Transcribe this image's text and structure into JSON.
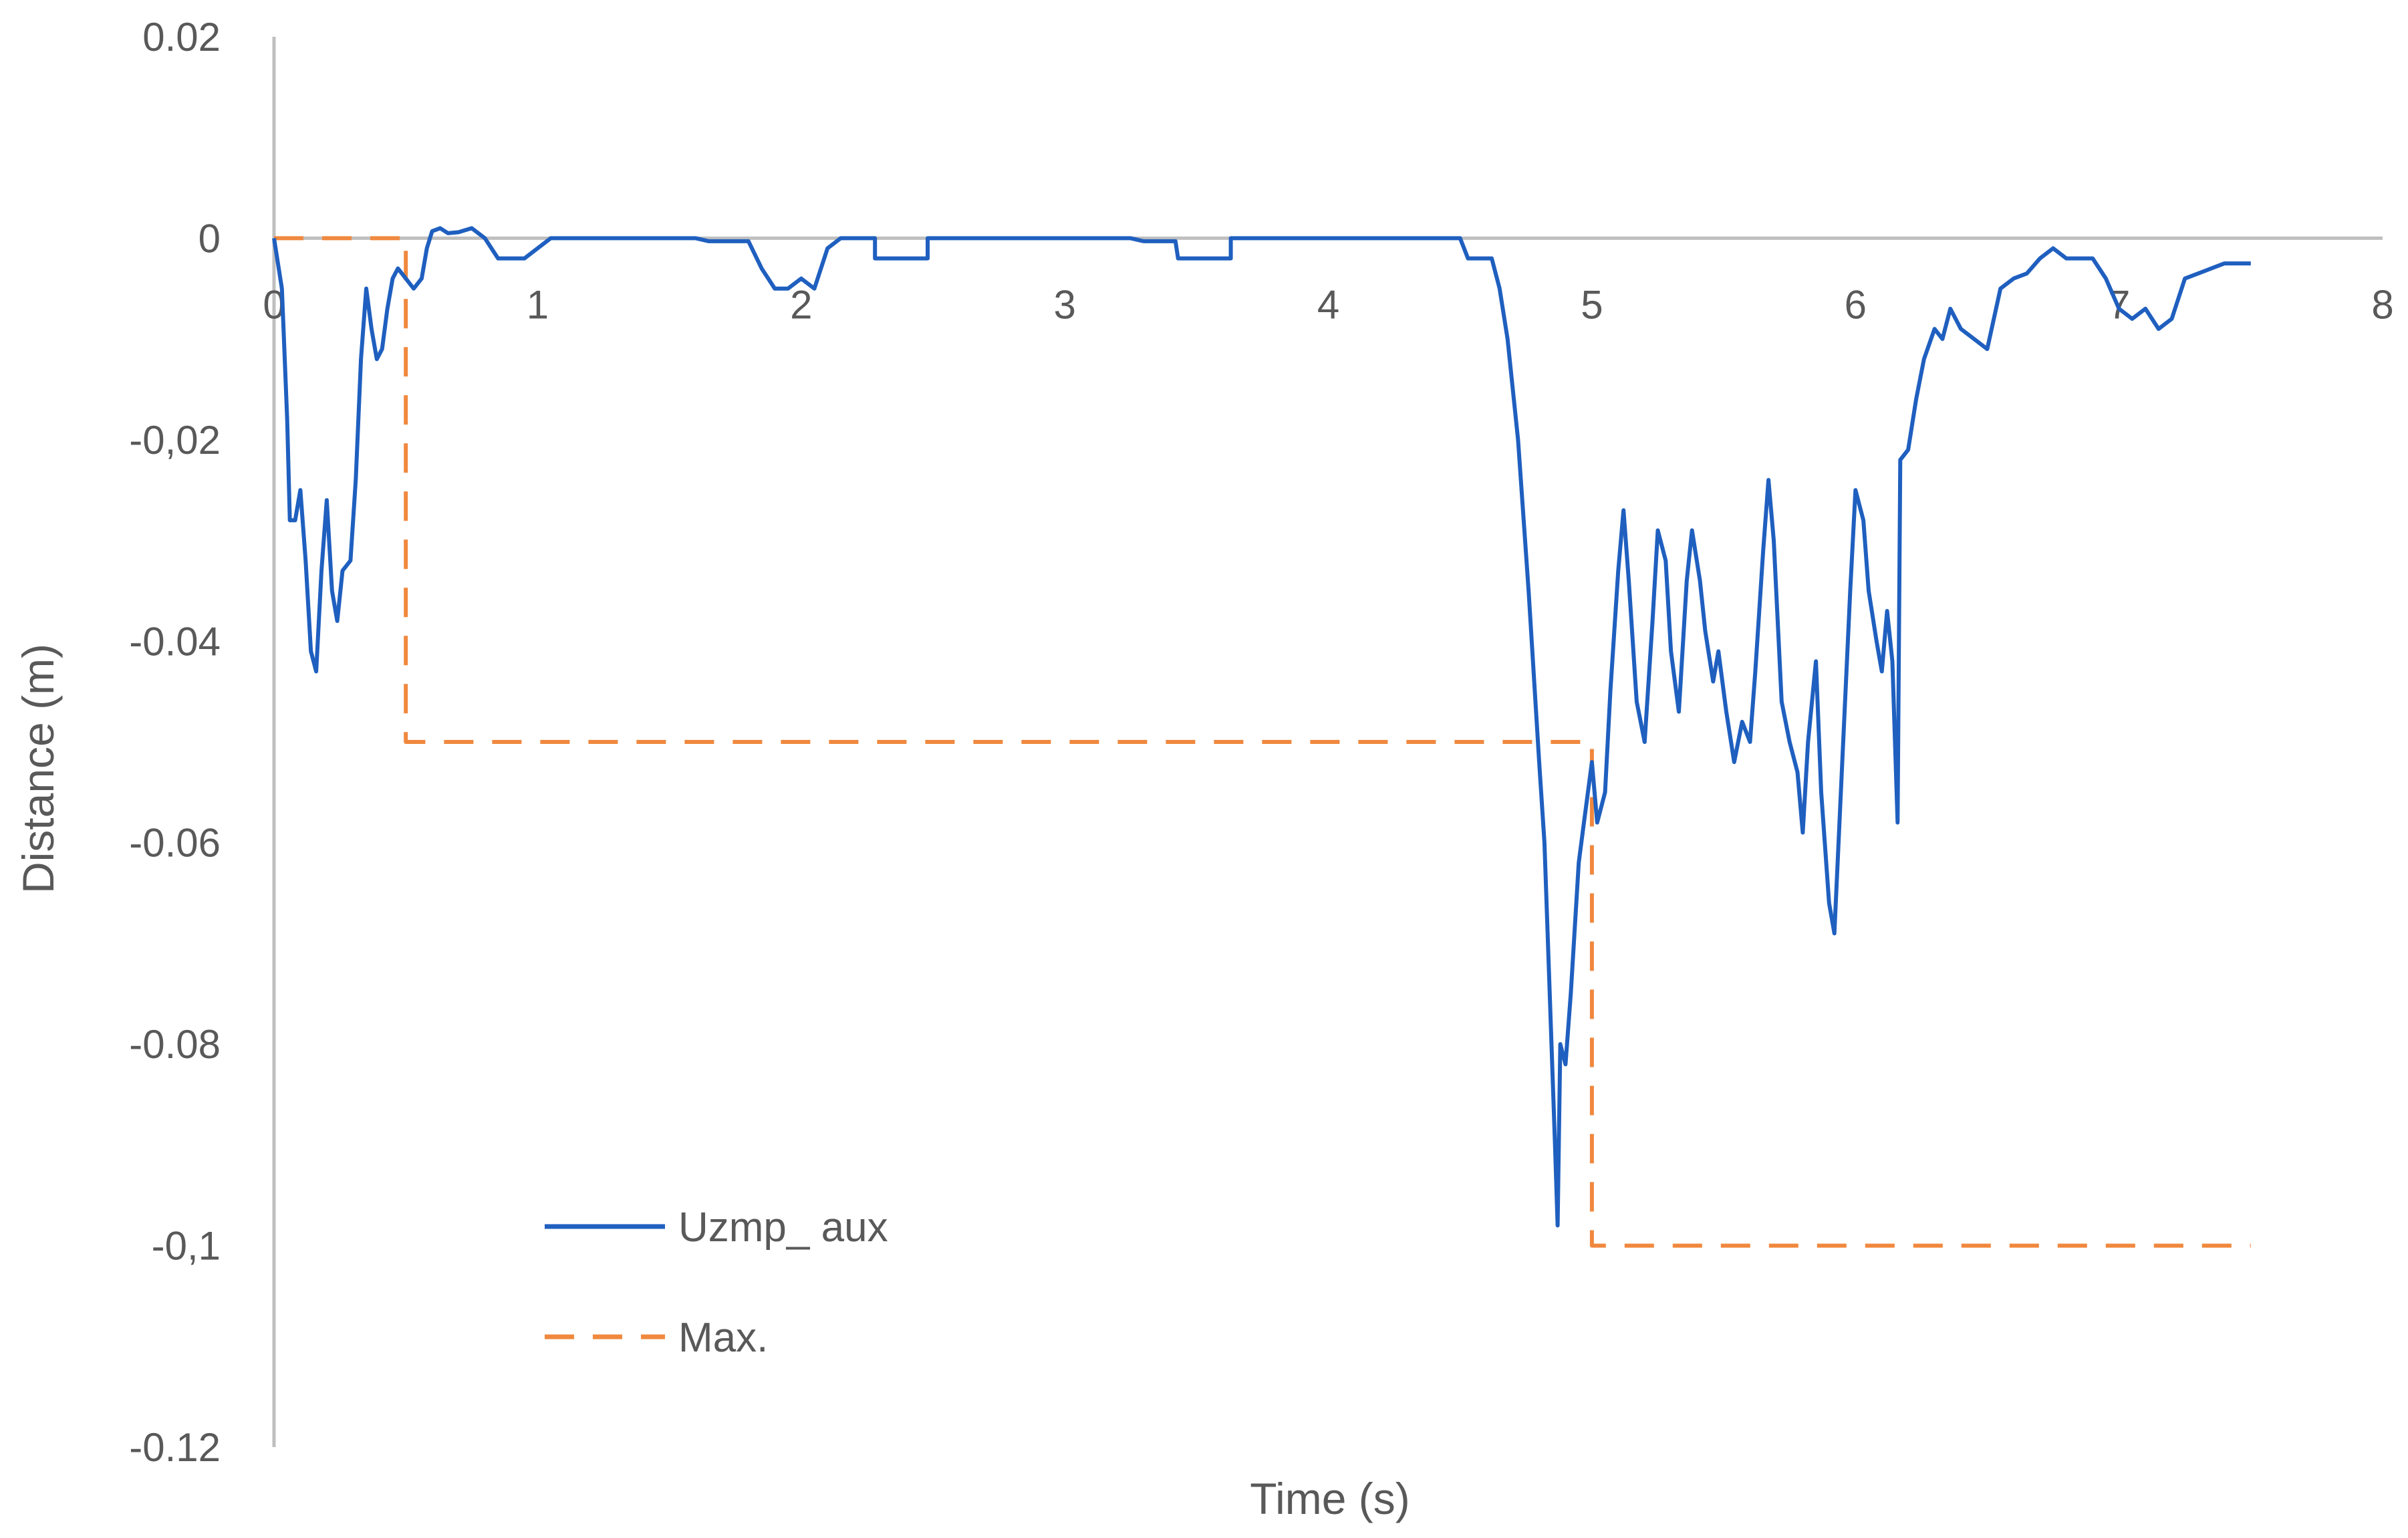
{
  "chart_data": {
    "type": "line",
    "title": "",
    "xlabel": "Time (s)",
    "ylabel": "Distance (m)",
    "xlim": [
      0,
      8
    ],
    "ylim": [
      -0.12,
      0.02
    ],
    "x_ticks": [
      0,
      1,
      2,
      3,
      4,
      5,
      6,
      7,
      8
    ],
    "x_tick_labels": [
      "0",
      "1",
      "2",
      "3",
      "4",
      "5",
      "6",
      "7",
      "8"
    ],
    "y_ticks": [
      0.02,
      0,
      -0.02,
      -0.04,
      -0.06,
      -0.08,
      -0.1,
      -0.12
    ],
    "y_tick_labels": [
      "0.02",
      "0",
      "-0,02",
      "-0.04",
      "-0.06",
      "-0.08",
      "-0,1",
      "-0.12"
    ],
    "grid": false,
    "legend_position": "bottom-left",
    "series": [
      {
        "name": "Uzmp_ aux",
        "color": "#1f5fbf",
        "style": "solid",
        "points": [
          [
            0,
            0
          ],
          [
            0.03,
            -0.005
          ],
          [
            0.05,
            -0.018
          ],
          [
            0.06,
            -0.028
          ],
          [
            0.08,
            -0.028
          ],
          [
            0.1,
            -0.025
          ],
          [
            0.12,
            -0.032
          ],
          [
            0.14,
            -0.041
          ],
          [
            0.16,
            -0.043
          ],
          [
            0.18,
            -0.033
          ],
          [
            0.2,
            -0.026
          ],
          [
            0.22,
            -0.035
          ],
          [
            0.24,
            -0.038
          ],
          [
            0.26,
            -0.033
          ],
          [
            0.29,
            -0.032
          ],
          [
            0.31,
            -0.024
          ],
          [
            0.33,
            -0.012
          ],
          [
            0.35,
            -0.005
          ],
          [
            0.37,
            -0.009
          ],
          [
            0.39,
            -0.012
          ],
          [
            0.41,
            -0.011
          ],
          [
            0.43,
            -0.007
          ],
          [
            0.45,
            -0.004
          ],
          [
            0.47,
            -0.003
          ],
          [
            0.5,
            -0.004
          ],
          [
            0.53,
            -0.005
          ],
          [
            0.56,
            -0.004
          ],
          [
            0.58,
            -0.001
          ],
          [
            0.6,
            0.0007
          ],
          [
            0.63,
            0.001
          ],
          [
            0.66,
            0.0005
          ],
          [
            0.7,
            0.0006
          ],
          [
            0.75,
            0.001
          ],
          [
            0.8,
            0
          ],
          [
            0.85,
            -0.002
          ],
          [
            0.95,
            -0.002
          ],
          [
            1.05,
            0
          ],
          [
            1.6,
            0
          ],
          [
            1.65,
            -0.0003
          ],
          [
            1.8,
            -0.0003
          ],
          [
            1.85,
            -0.003
          ],
          [
            1.9,
            -0.005
          ],
          [
            1.95,
            -0.005
          ],
          [
            2.0,
            -0.004
          ],
          [
            2.05,
            -0.005
          ],
          [
            2.1,
            -0.001
          ],
          [
            2.15,
            0
          ],
          [
            2.28,
            0
          ],
          [
            2.28,
            -0.002
          ],
          [
            2.48,
            -0.002
          ],
          [
            2.48,
            0
          ],
          [
            3.25,
            0
          ],
          [
            3.3,
            -0.0003
          ],
          [
            3.42,
            -0.0003
          ],
          [
            3.43,
            -0.002
          ],
          [
            3.63,
            -0.002
          ],
          [
            3.63,
            0
          ],
          [
            4.5,
            0
          ],
          [
            4.53,
            -0.002
          ],
          [
            4.62,
            -0.002
          ],
          [
            4.65,
            -0.005
          ],
          [
            4.68,
            -0.01
          ],
          [
            4.72,
            -0.02
          ],
          [
            4.76,
            -0.035
          ],
          [
            4.8,
            -0.052
          ],
          [
            4.82,
            -0.06
          ],
          [
            4.84,
            -0.075
          ],
          [
            4.86,
            -0.09
          ],
          [
            4.87,
            -0.098
          ],
          [
            4.88,
            -0.08
          ],
          [
            4.9,
            -0.082
          ],
          [
            4.92,
            -0.075
          ],
          [
            4.95,
            -0.062
          ],
          [
            4.97,
            -0.058
          ],
          [
            5.0,
            -0.052
          ],
          [
            5.02,
            -0.058
          ],
          [
            5.05,
            -0.055
          ],
          [
            5.07,
            -0.045
          ],
          [
            5.1,
            -0.033
          ],
          [
            5.12,
            -0.027
          ],
          [
            5.14,
            -0.034
          ],
          [
            5.17,
            -0.046
          ],
          [
            5.2,
            -0.05
          ],
          [
            5.23,
            -0.038
          ],
          [
            5.25,
            -0.029
          ],
          [
            5.28,
            -0.032
          ],
          [
            5.3,
            -0.041
          ],
          [
            5.33,
            -0.047
          ],
          [
            5.36,
            -0.034
          ],
          [
            5.38,
            -0.029
          ],
          [
            5.41,
            -0.034
          ],
          [
            5.43,
            -0.039
          ],
          [
            5.46,
            -0.044
          ],
          [
            5.48,
            -0.041
          ],
          [
            5.51,
            -0.047
          ],
          [
            5.54,
            -0.052
          ],
          [
            5.57,
            -0.048
          ],
          [
            5.6,
            -0.05
          ],
          [
            5.62,
            -0.043
          ],
          [
            5.65,
            -0.031
          ],
          [
            5.67,
            -0.024
          ],
          [
            5.69,
            -0.03
          ],
          [
            5.72,
            -0.046
          ],
          [
            5.75,
            -0.05
          ],
          [
            5.78,
            -0.053
          ],
          [
            5.8,
            -0.059
          ],
          [
            5.82,
            -0.05
          ],
          [
            5.85,
            -0.042
          ],
          [
            5.87,
            -0.055
          ],
          [
            5.9,
            -0.066
          ],
          [
            5.92,
            -0.069
          ],
          [
            5.95,
            -0.052
          ],
          [
            5.98,
            -0.035
          ],
          [
            6.0,
            -0.025
          ],
          [
            6.03,
            -0.028
          ],
          [
            6.05,
            -0.035
          ],
          [
            6.08,
            -0.04
          ],
          [
            6.1,
            -0.043
          ],
          [
            6.12,
            -0.037
          ],
          [
            6.14,
            -0.042
          ],
          [
            6.16,
            -0.058
          ],
          [
            6.17,
            -0.022
          ],
          [
            6.2,
            -0.021
          ],
          [
            6.23,
            -0.016
          ],
          [
            6.26,
            -0.012
          ],
          [
            6.3,
            -0.009
          ],
          [
            6.33,
            -0.01
          ],
          [
            6.36,
            -0.007
          ],
          [
            6.4,
            -0.009
          ],
          [
            6.45,
            -0.01
          ],
          [
            6.5,
            -0.011
          ],
          [
            6.55,
            -0.005
          ],
          [
            6.6,
            -0.004
          ],
          [
            6.65,
            -0.0035
          ],
          [
            6.7,
            -0.002
          ],
          [
            6.75,
            -0.001
          ],
          [
            6.8,
            -0.002
          ],
          [
            6.85,
            -0.002
          ],
          [
            6.9,
            -0.002
          ],
          [
            6.95,
            -0.004
          ],
          [
            7.0,
            -0.007
          ],
          [
            7.05,
            -0.008
          ],
          [
            7.1,
            -0.007
          ],
          [
            7.15,
            -0.009
          ],
          [
            7.2,
            -0.008
          ],
          [
            7.25,
            -0.004
          ],
          [
            7.3,
            -0.0035
          ],
          [
            7.35,
            -0.003
          ],
          [
            7.4,
            -0.0025
          ],
          [
            7.45,
            -0.0025
          ],
          [
            7.5,
            -0.0025
          ]
        ]
      },
      {
        "name": "Max.",
        "color": "#f0883e",
        "style": "dashed",
        "points": [
          [
            0,
            0
          ],
          [
            0.5,
            0
          ],
          [
            0.5,
            -0.05
          ],
          [
            5.0,
            -0.05
          ],
          [
            5.0,
            -0.1
          ],
          [
            7.5,
            -0.1
          ]
        ]
      }
    ]
  }
}
